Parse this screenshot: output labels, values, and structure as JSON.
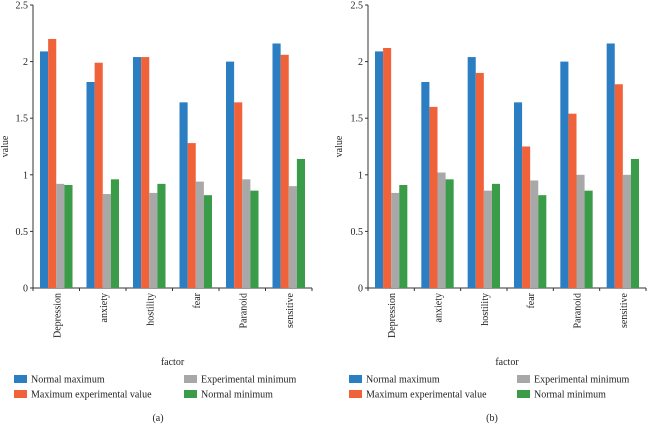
{
  "chart_data": [
    {
      "type": "bar",
      "panel_label": "(a)",
      "xlabel": "factor",
      "ylabel": "value",
      "ylim": [
        0,
        2.5
      ],
      "yticks": [
        "0",
        "0.5",
        "1",
        "1.5",
        "2",
        "2.5"
      ],
      "categories": [
        "Depression",
        "anxiety",
        "hostility",
        "fear",
        "Paranoid",
        "sensitive"
      ],
      "series": [
        {
          "name": "Normal maximum",
          "color": "#2b7ec1",
          "values": [
            2.09,
            1.82,
            2.04,
            1.64,
            2.0,
            2.16
          ]
        },
        {
          "name": "Maximum experimental value",
          "color": "#f0623a",
          "values": [
            2.2,
            1.99,
            2.04,
            1.28,
            1.64,
            2.06
          ]
        },
        {
          "name": "Experimental minimum",
          "color": "#a8a8a8",
          "values": [
            0.92,
            0.83,
            0.84,
            0.94,
            0.96,
            0.9
          ]
        },
        {
          "name": "Normal minimum",
          "color": "#3a9b48",
          "values": [
            0.91,
            0.96,
            0.92,
            0.82,
            0.86,
            1.14
          ]
        }
      ]
    },
    {
      "type": "bar",
      "panel_label": "(b)",
      "xlabel": "factor",
      "ylabel": "value",
      "ylim": [
        0,
        2.5
      ],
      "yticks": [
        "0",
        "0.5",
        "1",
        "1.5",
        "2",
        "2.5"
      ],
      "categories": [
        "Depression",
        "anxiety",
        "hostility",
        "fear",
        "Paranoid",
        "sensitive"
      ],
      "series": [
        {
          "name": "Normal maximum",
          "color": "#2b7ec1",
          "values": [
            2.09,
            1.82,
            2.04,
            1.64,
            2.0,
            2.16
          ]
        },
        {
          "name": "Maximum experimental value",
          "color": "#f0623a",
          "values": [
            2.12,
            1.6,
            1.9,
            1.25,
            1.54,
            1.8
          ]
        },
        {
          "name": "Experimental minimum",
          "color": "#a8a8a8",
          "values": [
            0.84,
            1.02,
            0.86,
            0.95,
            1.0,
            1.0
          ]
        },
        {
          "name": "Normal minimum",
          "color": "#3a9b48",
          "values": [
            0.91,
            0.96,
            0.92,
            0.82,
            0.86,
            1.14
          ]
        }
      ]
    }
  ]
}
